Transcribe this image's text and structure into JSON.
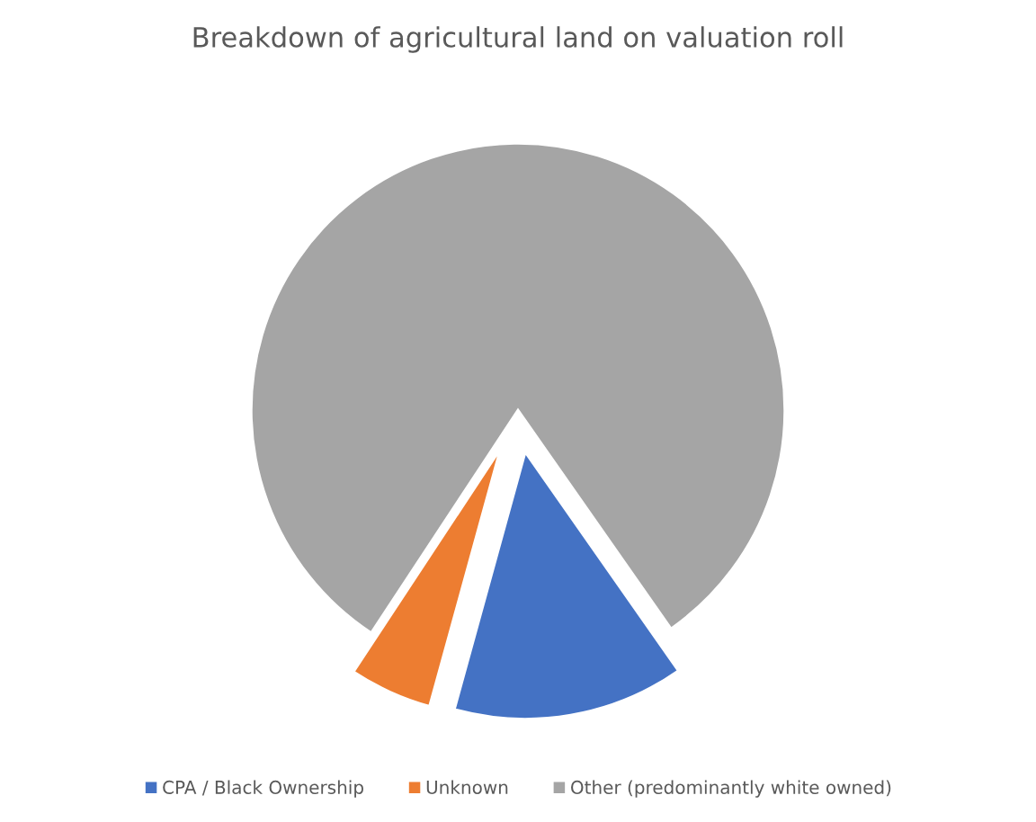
{
  "chart_data": {
    "type": "pie",
    "title": "Breakdown of agricultural land on valuation roll",
    "categories": [
      "CPA / Black Ownership",
      "Unknown",
      "Other (predominantly white owned)"
    ],
    "values": [
      14,
      5,
      81
    ],
    "colors": [
      "#4472c4",
      "#ed7d31",
      "#a5a5a5"
    ],
    "legend": "bottom"
  }
}
